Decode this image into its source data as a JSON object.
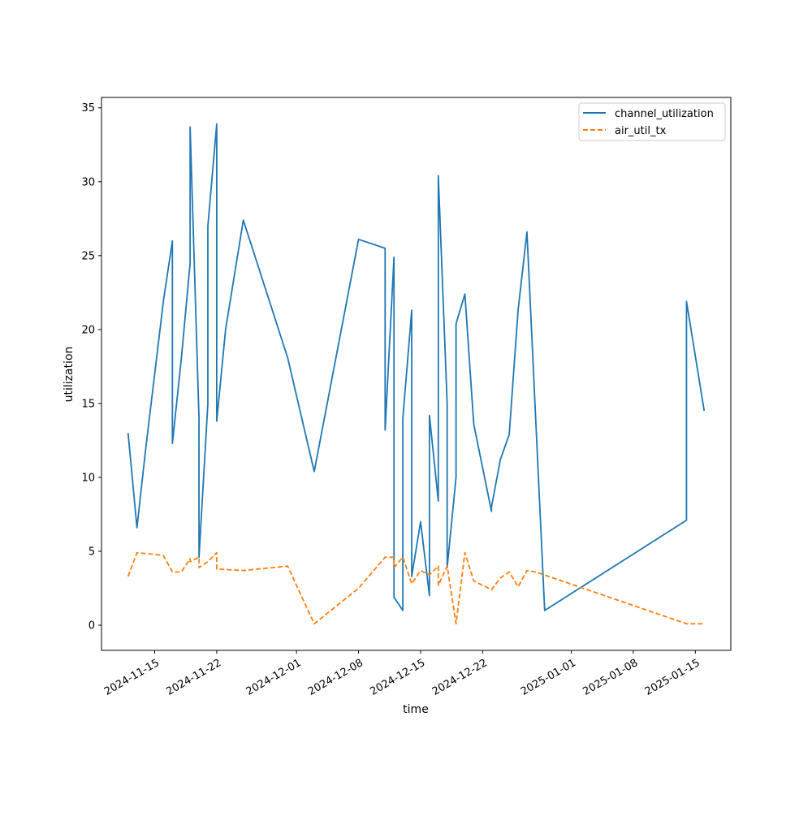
{
  "chart_data": {
    "type": "line",
    "xlabel": "time",
    "ylabel": "utilization",
    "x_axis_type": "date",
    "xlim": [
      "2024-11-09",
      "2025-01-19"
    ],
    "ylim": [
      -1.7,
      35.7
    ],
    "x_ticks": [
      "2024-11-15",
      "2024-11-22",
      "2024-12-01",
      "2024-12-08",
      "2024-12-15",
      "2024-12-22",
      "2025-01-01",
      "2025-01-08",
      "2025-01-15"
    ],
    "y_ticks": [
      0,
      5,
      10,
      15,
      20,
      25,
      30,
      35
    ],
    "grid": false,
    "legend_position": "top-right",
    "series": [
      {
        "name": "channel_utilization",
        "color": "#1f77b4",
        "line_style": "solid",
        "points": [
          [
            "2024-11-12",
            13.0
          ],
          [
            "2024-11-13",
            6.6
          ],
          [
            "2024-11-14",
            12.0
          ],
          [
            "2024-11-15",
            17.0
          ],
          [
            "2024-11-16",
            22.0
          ],
          [
            "2024-11-17",
            26.0
          ],
          [
            "2024-11-17",
            12.3
          ],
          [
            "2024-11-18",
            18.0
          ],
          [
            "2024-11-19",
            24.5
          ],
          [
            "2024-11-19",
            33.7
          ],
          [
            "2024-11-20",
            14.0
          ],
          [
            "2024-11-20",
            4.6
          ],
          [
            "2024-11-21",
            15.0
          ],
          [
            "2024-11-21",
            27.0
          ],
          [
            "2024-11-22",
            33.9
          ],
          [
            "2024-11-22",
            13.8
          ],
          [
            "2024-11-23",
            20.0
          ],
          [
            "2024-11-25",
            27.4
          ],
          [
            "2024-11-30",
            18.1
          ],
          [
            "2024-12-03",
            10.4
          ],
          [
            "2024-12-08",
            26.1
          ],
          [
            "2024-12-11",
            25.5
          ],
          [
            "2024-12-11",
            13.2
          ],
          [
            "2024-12-12",
            24.9
          ],
          [
            "2024-12-12",
            1.9
          ],
          [
            "2024-12-13",
            1.0
          ],
          [
            "2024-12-13",
            14.0
          ],
          [
            "2024-12-14",
            21.3
          ],
          [
            "2024-12-14",
            3.3
          ],
          [
            "2024-12-15",
            7.0
          ],
          [
            "2024-12-16",
            2.0
          ],
          [
            "2024-12-16",
            14.2
          ],
          [
            "2024-12-17",
            8.4
          ],
          [
            "2024-12-17",
            30.4
          ],
          [
            "2024-12-18",
            15.0
          ],
          [
            "2024-12-18",
            3.9
          ],
          [
            "2024-12-19",
            10.0
          ],
          [
            "2024-12-19",
            20.4
          ],
          [
            "2024-12-20",
            22.4
          ],
          [
            "2024-12-21",
            13.6
          ],
          [
            "2024-12-23",
            7.7
          ],
          [
            "2024-12-23",
            8.0
          ],
          [
            "2024-12-24",
            11.2
          ],
          [
            "2024-12-25",
            12.9
          ],
          [
            "2024-12-26",
            21.3
          ],
          [
            "2024-12-27",
            26.6
          ],
          [
            "2024-12-29",
            1.0
          ],
          [
            "2025-01-14",
            7.1
          ],
          [
            "2025-01-14",
            21.9
          ],
          [
            "2025-01-16",
            14.5
          ]
        ]
      },
      {
        "name": "air_util_tx",
        "color": "#ff7f0e",
        "line_style": "dashed",
        "points": [
          [
            "2024-11-12",
            3.3
          ],
          [
            "2024-11-13",
            4.9
          ],
          [
            "2024-11-15",
            4.8
          ],
          [
            "2024-11-16",
            4.7
          ],
          [
            "2024-11-17",
            3.6
          ],
          [
            "2024-11-18",
            3.6
          ],
          [
            "2024-11-19",
            4.5
          ],
          [
            "2024-11-19",
            4.3
          ],
          [
            "2024-11-20",
            4.6
          ],
          [
            "2024-11-20",
            3.9
          ],
          [
            "2024-11-21",
            4.3
          ],
          [
            "2024-11-22",
            4.9
          ],
          [
            "2024-11-22",
            3.8
          ],
          [
            "2024-11-25",
            3.7
          ],
          [
            "2024-11-30",
            4.0
          ],
          [
            "2024-12-03",
            0.1
          ],
          [
            "2024-12-08",
            2.5
          ],
          [
            "2024-12-11",
            4.6
          ],
          [
            "2024-12-12",
            4.6
          ],
          [
            "2024-12-12",
            3.9
          ],
          [
            "2024-12-13",
            4.6
          ],
          [
            "2024-12-14",
            2.8
          ],
          [
            "2024-12-15",
            3.7
          ],
          [
            "2024-12-16",
            3.4
          ],
          [
            "2024-12-17",
            4.0
          ],
          [
            "2024-12-17",
            2.7
          ],
          [
            "2024-12-18",
            4.0
          ],
          [
            "2024-12-19",
            0.1
          ],
          [
            "2024-12-20",
            4.9
          ],
          [
            "2024-12-21",
            3.0
          ],
          [
            "2024-12-23",
            2.4
          ],
          [
            "2024-12-24",
            3.2
          ],
          [
            "2024-12-25",
            3.6
          ],
          [
            "2024-12-26",
            2.6
          ],
          [
            "2024-12-27",
            3.7
          ],
          [
            "2024-12-28",
            3.6
          ],
          [
            "2025-01-14",
            0.1
          ],
          [
            "2025-01-16",
            0.1
          ]
        ]
      }
    ]
  }
}
